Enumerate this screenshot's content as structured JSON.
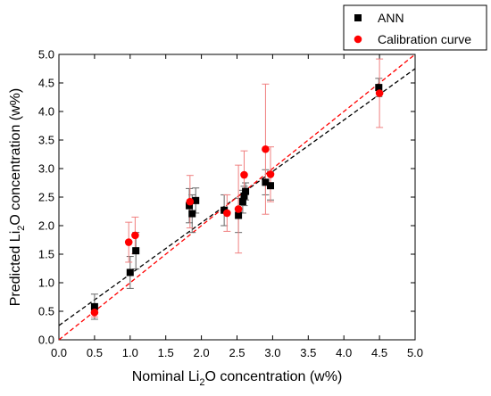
{
  "chart_data": {
    "type": "scatter",
    "xlabel": {
      "pre": "Nominal Li",
      "sub": "2",
      "post": "O concentration (w%)"
    },
    "ylabel": {
      "pre": "Predicted Li",
      "sub": "2",
      "post": "O concentration (w%)"
    },
    "xlim": [
      0,
      5
    ],
    "ylim": [
      0,
      5
    ],
    "xticks": [
      "0.0",
      "0.5",
      "1.0",
      "1.5",
      "2.0",
      "2.5",
      "3.0",
      "3.5",
      "4.0",
      "4.5",
      "5.0"
    ],
    "yticks": [
      "0.0",
      "0.5",
      "1.0",
      "1.5",
      "2.0",
      "2.5",
      "3.0",
      "3.5",
      "4.0",
      "4.5",
      "5.0"
    ],
    "grid": false,
    "legend_position": "top-right",
    "series": [
      {
        "name": "ANN",
        "marker": "square",
        "color": "#000000",
        "error_bar_color": "#666666",
        "points": [
          {
            "x": 0.5,
            "y": 0.58,
            "err": 0.22
          },
          {
            "x": 1.0,
            "y": 1.18,
            "err": 0.28
          },
          {
            "x": 1.08,
            "y": 1.56,
            "err": 0.32
          },
          {
            "x": 1.83,
            "y": 2.35,
            "err": 0.3
          },
          {
            "x": 1.87,
            "y": 2.21,
            "err": 0.33
          },
          {
            "x": 1.92,
            "y": 2.44,
            "err": 0.22
          },
          {
            "x": 2.32,
            "y": 2.27,
            "err": 0.27
          },
          {
            "x": 2.52,
            "y": 2.18,
            "err": 0.3
          },
          {
            "x": 2.58,
            "y": 2.42,
            "err": 0.2
          },
          {
            "x": 2.6,
            "y": 2.52,
            "err": 0.17
          },
          {
            "x": 2.62,
            "y": 2.6,
            "err": 0.15
          },
          {
            "x": 2.9,
            "y": 2.76,
            "err": 0.22
          },
          {
            "x": 2.97,
            "y": 2.7,
            "err": 0.25
          },
          {
            "x": 4.49,
            "y": 4.42,
            "err": 0.16
          }
        ],
        "fit_line": {
          "style": "dashed",
          "intercept": 0.25,
          "slope": 0.9
        }
      },
      {
        "name": "Calibration curve",
        "marker": "circle",
        "color": "#ff0000",
        "error_bar_color": "#f08080",
        "points": [
          {
            "x": 0.5,
            "y": 0.48,
            "err": 0.08
          },
          {
            "x": 0.98,
            "y": 1.71,
            "err": 0.35
          },
          {
            "x": 1.07,
            "y": 1.83,
            "err": 0.32
          },
          {
            "x": 1.84,
            "y": 2.42,
            "err": 0.46
          },
          {
            "x": 2.36,
            "y": 2.22,
            "err": 0.32
          },
          {
            "x": 2.52,
            "y": 2.29,
            "err": 0.77
          },
          {
            "x": 2.6,
            "y": 2.89,
            "err": 0.42
          },
          {
            "x": 2.9,
            "y": 3.34,
            "err": 1.14
          },
          {
            "x": 2.97,
            "y": 2.9,
            "err": 0.48
          },
          {
            "x": 4.5,
            "y": 4.32,
            "err": 0.6
          }
        ],
        "fit_line": {
          "style": "dashed",
          "intercept": 0.0,
          "slope": 1.0
        }
      }
    ]
  }
}
